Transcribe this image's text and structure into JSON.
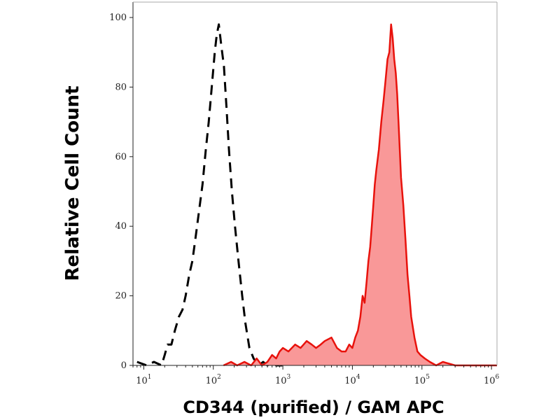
{
  "chart_data": {
    "type": "area",
    "title": "",
    "xlabel": "CD344 (purified) / GAM APC",
    "ylabel": "Relative Cell Count",
    "x_scale": "log",
    "xlim": [
      7,
      1200000
    ],
    "ylim": [
      0,
      100
    ],
    "x_ticks": [
      {
        "base": "10",
        "exp": "1",
        "value": 10
      },
      {
        "base": "10",
        "exp": "2",
        "value": 100
      },
      {
        "base": "10",
        "exp": "3",
        "value": 1000
      },
      {
        "base": "10",
        "exp": "4",
        "value": 10000
      },
      {
        "base": "10",
        "exp": "5",
        "value": 100000
      },
      {
        "base": "10",
        "exp": "6",
        "value": 1000000
      }
    ],
    "y_ticks": [
      "0",
      "20",
      "40",
      "60",
      "80",
      "100"
    ],
    "grid": false,
    "legend": "none",
    "series": [
      {
        "style": "dashed",
        "color": "#000000",
        "fill": "none",
        "points": [
          [
            8,
            1
          ],
          [
            11,
            0
          ],
          [
            14,
            1
          ],
          [
            18,
            0
          ],
          [
            20,
            3
          ],
          [
            22,
            6
          ],
          [
            25,
            6
          ],
          [
            28,
            10
          ],
          [
            32,
            14
          ],
          [
            36,
            16
          ],
          [
            40,
            20
          ],
          [
            45,
            26
          ],
          [
            50,
            30
          ],
          [
            55,
            36
          ],
          [
            62,
            44
          ],
          [
            70,
            52
          ],
          [
            78,
            62
          ],
          [
            86,
            70
          ],
          [
            95,
            80
          ],
          [
            105,
            90
          ],
          [
            112,
            95
          ],
          [
            120,
            98
          ],
          [
            130,
            92
          ],
          [
            142,
            86
          ],
          [
            155,
            74
          ],
          [
            168,
            62
          ],
          [
            185,
            50
          ],
          [
            205,
            40
          ],
          [
            230,
            30
          ],
          [
            260,
            20
          ],
          [
            290,
            12
          ],
          [
            330,
            5
          ],
          [
            380,
            2
          ],
          [
            450,
            0
          ],
          [
            520,
            1
          ],
          [
            600,
            0
          ],
          [
            700,
            1
          ],
          [
            800,
            0
          ],
          [
            1000,
            0
          ]
        ]
      },
      {
        "style": "solid",
        "color": "#e8120c",
        "fill": "#f99898",
        "points": [
          [
            140,
            0
          ],
          [
            180,
            1
          ],
          [
            220,
            0
          ],
          [
            280,
            1
          ],
          [
            350,
            0
          ],
          [
            420,
            2
          ],
          [
            500,
            0
          ],
          [
            600,
            1
          ],
          [
            700,
            3
          ],
          [
            800,
            2
          ],
          [
            900,
            4
          ],
          [
            1000,
            5
          ],
          [
            1200,
            4
          ],
          [
            1500,
            6
          ],
          [
            1800,
            5
          ],
          [
            2200,
            7
          ],
          [
            2600,
            6
          ],
          [
            3000,
            5
          ],
          [
            3500,
            6
          ],
          [
            4000,
            7
          ],
          [
            5000,
            8
          ],
          [
            6000,
            5
          ],
          [
            7000,
            4
          ],
          [
            8000,
            4
          ],
          [
            9000,
            6
          ],
          [
            10000,
            5
          ],
          [
            11000,
            8
          ],
          [
            12000,
            10
          ],
          [
            13000,
            14
          ],
          [
            14000,
            20
          ],
          [
            15000,
            18
          ],
          [
            16000,
            24
          ],
          [
            17000,
            30
          ],
          [
            18000,
            34
          ],
          [
            19000,
            40
          ],
          [
            20000,
            46
          ],
          [
            21000,
            52
          ],
          [
            22000,
            56
          ],
          [
            24000,
            62
          ],
          [
            26000,
            70
          ],
          [
            28000,
            76
          ],
          [
            30000,
            82
          ],
          [
            32000,
            88
          ],
          [
            34000,
            90
          ],
          [
            36000,
            98
          ],
          [
            38000,
            94
          ],
          [
            40000,
            88
          ],
          [
            42000,
            84
          ],
          [
            44000,
            78
          ],
          [
            46000,
            70
          ],
          [
            48000,
            62
          ],
          [
            50000,
            54
          ],
          [
            54000,
            46
          ],
          [
            58000,
            36
          ],
          [
            62000,
            26
          ],
          [
            66000,
            20
          ],
          [
            70000,
            14
          ],
          [
            78000,
            8
          ],
          [
            86000,
            4
          ],
          [
            95000,
            3
          ],
          [
            110000,
            2
          ],
          [
            130000,
            1
          ],
          [
            160000,
            0
          ],
          [
            200000,
            1
          ],
          [
            300000,
            0
          ],
          [
            500000,
            0
          ],
          [
            800000,
            0
          ],
          [
            1000000,
            0
          ],
          [
            1200000,
            0
          ]
        ]
      }
    ]
  }
}
